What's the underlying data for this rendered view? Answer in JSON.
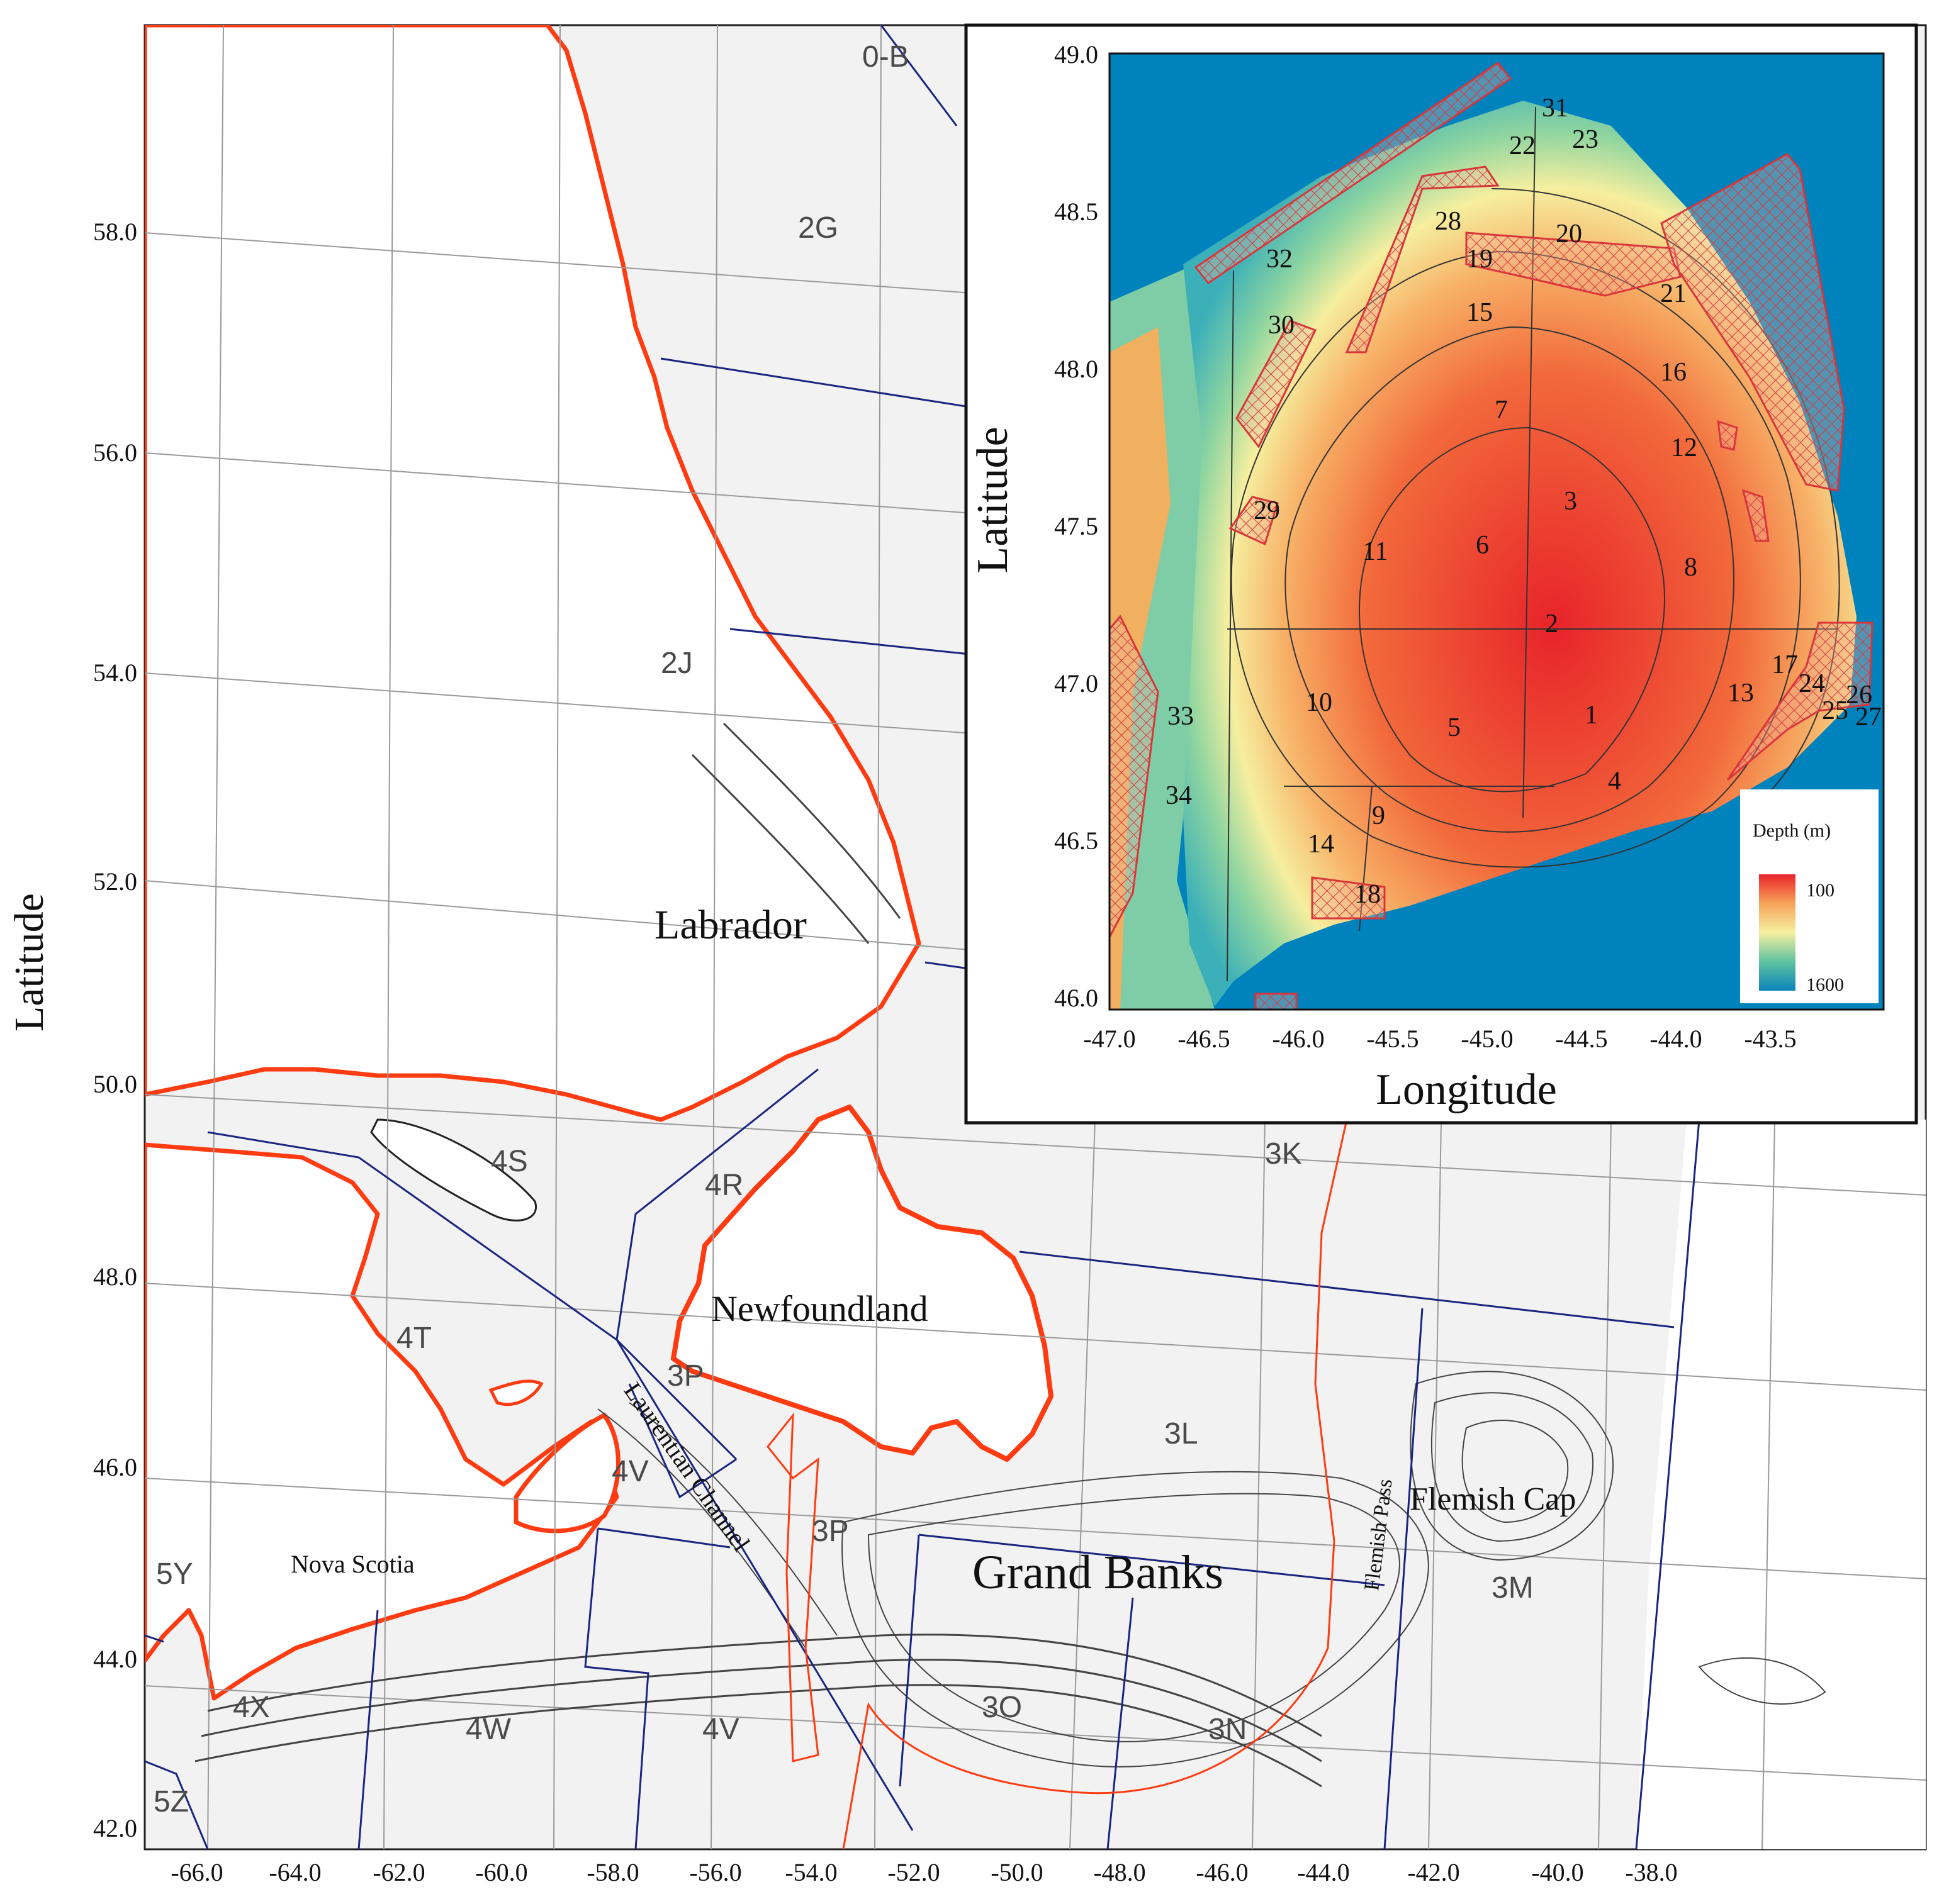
{
  "main_map": {
    "x_tick_labels": [
      "-66.0",
      "-64.0",
      "-62.0",
      "-60.0",
      "-58.0",
      "-56.0",
      "-54.0",
      "-52.0",
      "-50.0",
      "-48.0",
      "-46.0",
      "-44.0",
      "-42.0",
      "-40.0",
      "-38.0"
    ],
    "y_tick_labels": [
      "58.0",
      "56.0",
      "54.0",
      "52.0",
      "50.0",
      "48.0",
      "46.0",
      "44.0",
      "42.0"
    ],
    "y_axis_title": "Latitude",
    "nafo_divisions": [
      "0-B",
      "2G",
      "2J",
      "4S",
      "4R",
      "4T",
      "3P",
      "4V",
      "3P",
      "3K",
      "3L",
      "3M",
      "5Y",
      "4X",
      "4W",
      "4V",
      "3O",
      "3N",
      "5Z"
    ],
    "place_names": [
      "Labrador",
      "Newfoundland",
      "Nova Scotia",
      "Grand Banks",
      "Flemish Cap",
      "Laurentian Channel",
      "Flemish Pass"
    ]
  },
  "inset": {
    "x_tick_labels": [
      "-47.0",
      "-46.5",
      "-46.0",
      "-45.5",
      "-45.0",
      "-44.5",
      "-44.0",
      "-43.5"
    ],
    "y_tick_labels": [
      "49.0",
      "48.5",
      "48.0",
      "47.5",
      "47.0",
      "46.5",
      "46.0"
    ],
    "x_axis_title": "Longitude",
    "y_axis_title": "Latitude",
    "strata_labels": [
      "31",
      "23",
      "22",
      "28",
      "20",
      "19",
      "32",
      "21",
      "15",
      "30",
      "16",
      "7",
      "12",
      "3",
      "29",
      "6",
      "11",
      "8",
      "2",
      "17",
      "13",
      "24",
      "26",
      "25",
      "27",
      "10",
      "5",
      "1",
      "33",
      "4",
      "34",
      "9",
      "14",
      "18"
    ],
    "legend": {
      "title": "Depth (m)",
      "top_value": "100",
      "bottom_value": "1600"
    },
    "colors": {
      "deep": "#0082bd",
      "shallow": "#f03220",
      "hatch": "#d8363b"
    }
  },
  "colors": {
    "coastline": "#ff3b12",
    "nafo_boundary": "#1a2580",
    "land": "#ffffff",
    "sea": "#f2f2f2"
  }
}
